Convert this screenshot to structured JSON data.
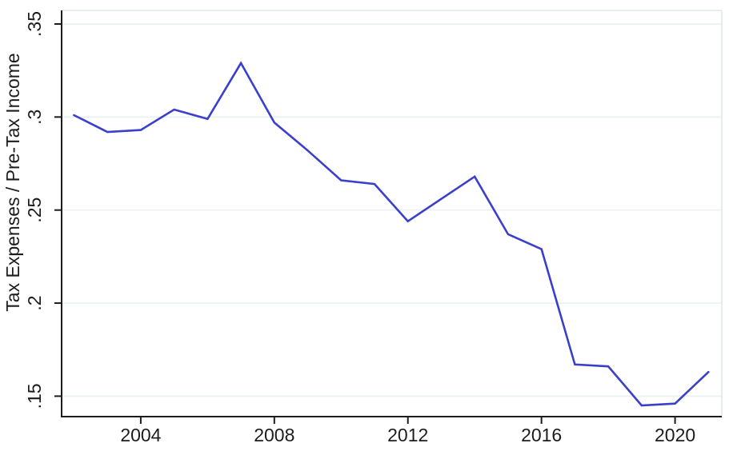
{
  "chart_data": {
    "type": "line",
    "title": "",
    "xlabel": "",
    "ylabel": "Tax Expenses / Pre-Tax Income",
    "series_name": "Tax Expenses / Pre-Tax Income",
    "x": [
      2002,
      2003,
      2004,
      2005,
      2006,
      2007,
      2008,
      2009,
      2010,
      2011,
      2012,
      2013,
      2014,
      2015,
      2016,
      2017,
      2018,
      2019,
      2020,
      2021
    ],
    "values": [
      0.301,
      0.292,
      0.293,
      0.304,
      0.299,
      0.329,
      0.297,
      0.282,
      0.266,
      0.264,
      0.244,
      0.256,
      0.268,
      0.237,
      0.229,
      0.167,
      0.166,
      0.145,
      0.146,
      0.163
    ],
    "x_tick_values": [
      2004,
      2008,
      2012,
      2016,
      2020
    ],
    "x_tick_labels": [
      "2004",
      "2008",
      "2012",
      "2016",
      "2020"
    ],
    "y_tick_values": [
      0.15,
      0.2,
      0.25,
      0.3,
      0.35
    ],
    "y_tick_labels": [
      ".15",
      ".2",
      ".25",
      ".3",
      ".35"
    ],
    "xlim": [
      2001.63,
      2021.4
    ],
    "ylim": [
      0.139,
      0.3573
    ],
    "grid": true,
    "legend": "none",
    "colors": {
      "line": "#3b3fcc",
      "grid": "#e8f1f3",
      "border": "#dde8ec",
      "axis": "#1c1c1c",
      "tick_text": "#1c1c1c",
      "background": "#ffffff"
    }
  }
}
